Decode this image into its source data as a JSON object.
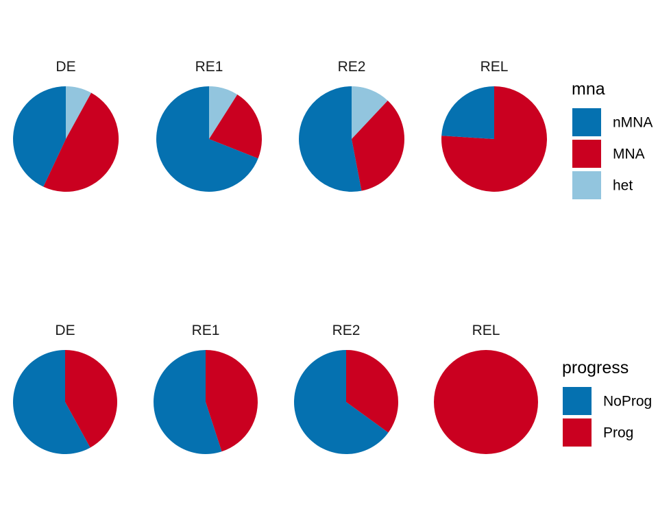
{
  "chart_data": [
    {
      "type": "pie",
      "facet_variable": "stage",
      "fill_variable": "mna",
      "legend": {
        "title": "mna",
        "placement": "right",
        "entries": [
          {
            "label": "nMNA",
            "color": "#0571b0"
          },
          {
            "label": "MNA",
            "color": "#ca0020"
          },
          {
            "label": "het",
            "color": "#92c5de"
          }
        ]
      },
      "facets": [
        {
          "title": "DE",
          "slices": [
            {
              "category": "het",
              "value": 0.08
            },
            {
              "category": "MNA",
              "value": 0.49
            },
            {
              "category": "nMNA",
              "value": 0.43
            }
          ]
        },
        {
          "title": "RE1",
          "slices": [
            {
              "category": "het",
              "value": 0.09
            },
            {
              "category": "MNA",
              "value": 0.22
            },
            {
              "category": "nMNA",
              "value": 0.69
            }
          ]
        },
        {
          "title": "RE2",
          "slices": [
            {
              "category": "het",
              "value": 0.12
            },
            {
              "category": "MNA",
              "value": 0.35
            },
            {
              "category": "nMNA",
              "value": 0.53
            }
          ]
        },
        {
          "title": "REL",
          "slices": [
            {
              "category": "het",
              "value": 0.0
            },
            {
              "category": "MNA",
              "value": 0.76
            },
            {
              "category": "nMNA",
              "value": 0.24
            }
          ]
        }
      ]
    },
    {
      "type": "pie",
      "facet_variable": "stage",
      "fill_variable": "progress",
      "legend": {
        "title": "progress",
        "placement": "right",
        "entries": [
          {
            "label": "NoProg",
            "color": "#0571b0"
          },
          {
            "label": "Prog",
            "color": "#ca0020"
          }
        ]
      },
      "facets": [
        {
          "title": "DE",
          "slices": [
            {
              "category": "Prog",
              "value": 0.42
            },
            {
              "category": "NoProg",
              "value": 0.58
            }
          ]
        },
        {
          "title": "RE1",
          "slices": [
            {
              "category": "Prog",
              "value": 0.45
            },
            {
              "category": "NoProg",
              "value": 0.55
            }
          ]
        },
        {
          "title": "RE2",
          "slices": [
            {
              "category": "Prog",
              "value": 0.35
            },
            {
              "category": "NoProg",
              "value": 0.65
            }
          ]
        },
        {
          "title": "REL",
          "slices": [
            {
              "category": "Prog",
              "value": 1.0
            },
            {
              "category": "NoProg",
              "value": 0.0
            }
          ]
        }
      ]
    }
  ]
}
